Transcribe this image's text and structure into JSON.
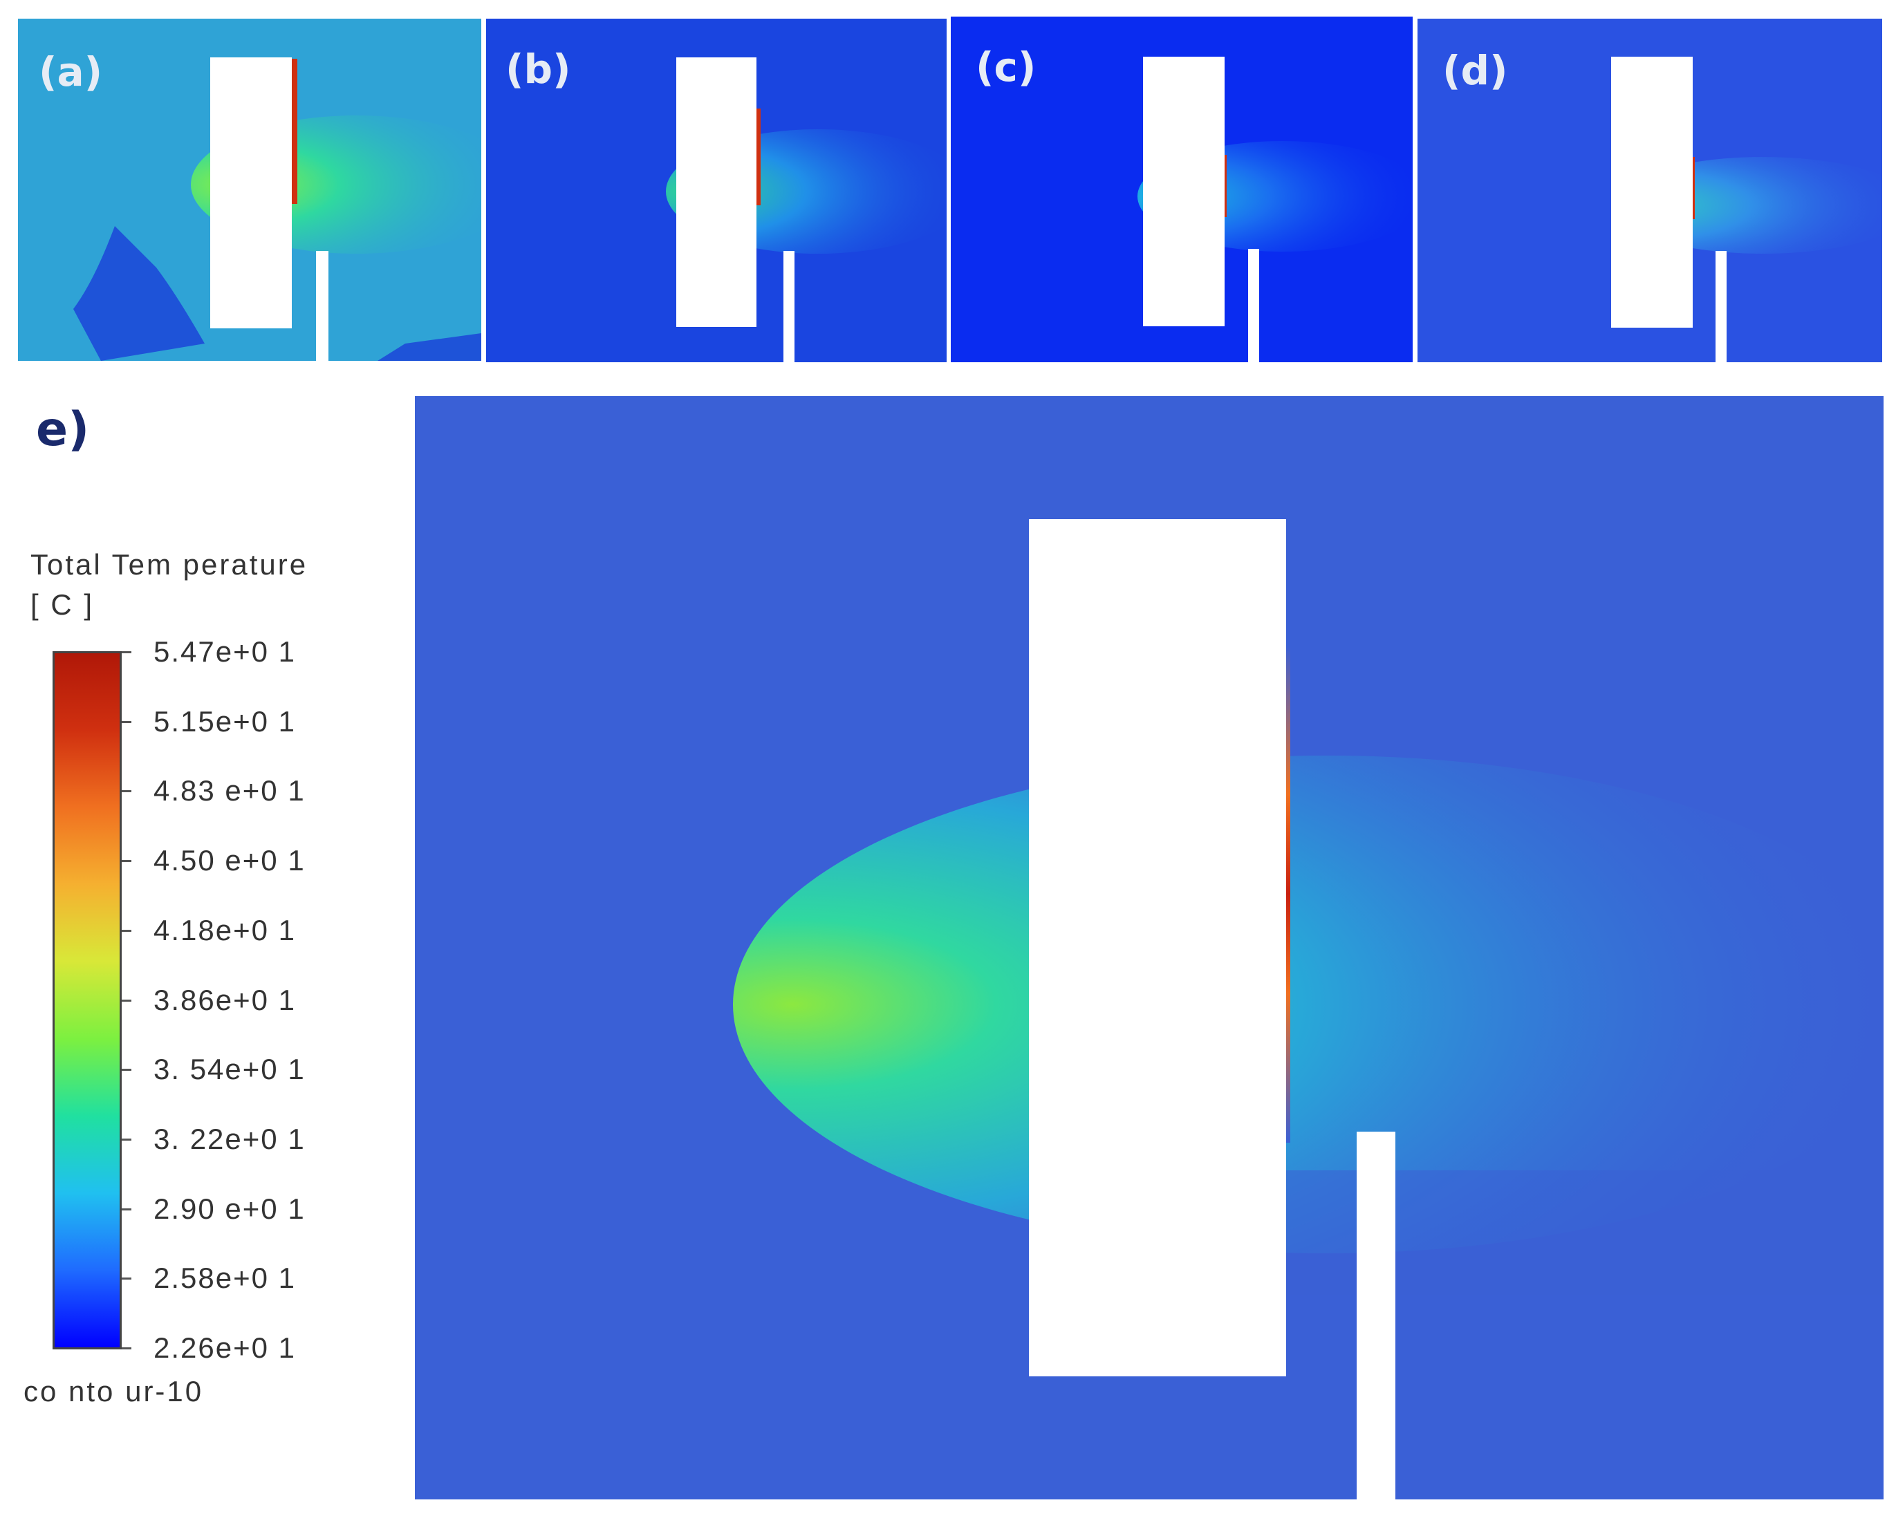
{
  "panels": [
    {
      "label": "(a)",
      "background": "#2fa3d6"
    },
    {
      "label": "(b)",
      "background": "#1a45e0"
    },
    {
      "label": "(c)",
      "background": "#0a2cf0"
    },
    {
      "label": "(d)",
      "background": "#2a52e2"
    },
    {
      "label": "e)",
      "background": "#3a60d6"
    }
  ],
  "legend": {
    "title_line1": "Total Tem perature",
    "title_line2": "[ C ]",
    "ticks": [
      "5.47e+0 1",
      "5.15e+0 1",
      "4.83 e+0 1",
      "4.50 e+0 1",
      "4.18e+0 1",
      "3.86e+0 1",
      "3. 54e+0 1",
      "3. 22e+0 1",
      "2.90 e+0 1",
      "2.58e+0 1",
      "2.26e+0 1"
    ],
    "footer": "co nto ur-10",
    "colormap": [
      "#0000ff",
      "#1f6bff",
      "#20c0f0",
      "#20e0a0",
      "#7cf040",
      "#d8e838",
      "#f5b030",
      "#f07020",
      "#d03010",
      "#b01808"
    ]
  }
}
